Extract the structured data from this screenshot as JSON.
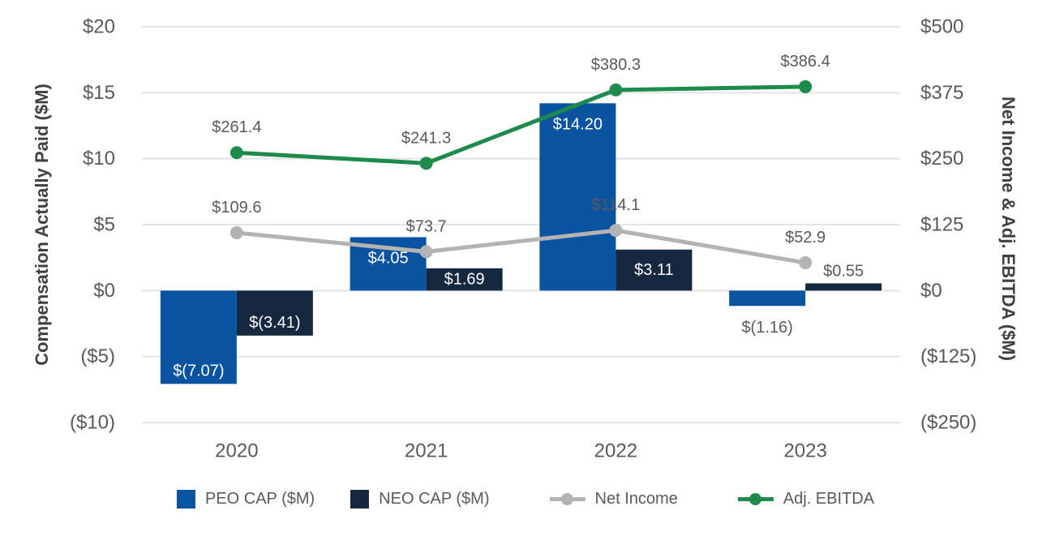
{
  "chart_data": {
    "type": "combo-bar-line",
    "categories": [
      "2020",
      "2021",
      "2022",
      "2023"
    ],
    "bar_series": [
      {
        "name": "PEO CAP ($M)",
        "color": "#0A53A1",
        "axis": "left",
        "values": [
          -7.07,
          4.05,
          14.2,
          -1.16
        ],
        "labels": [
          "$(7.07)",
          "$4.05",
          "$14.20",
          "$(1.16)"
        ]
      },
      {
        "name": "NEO CAP ($M)",
        "color": "#152840",
        "axis": "left",
        "values": [
          -3.41,
          1.69,
          3.11,
          0.55
        ],
        "labels": [
          "$(3.41)",
          "$1.69",
          "$3.11",
          "$0.55"
        ]
      }
    ],
    "line_series": [
      {
        "name": "Net Income",
        "color": "#B3B3B3",
        "axis": "right",
        "values": [
          109.6,
          73.7,
          114.1,
          52.9
        ],
        "labels": [
          "$109.6",
          "$73.7",
          "$114.1",
          "$52.9"
        ]
      },
      {
        "name": "Adj. EBITDA",
        "color": "#1E8A4C",
        "axis": "right",
        "values": [
          261.4,
          241.3,
          380.3,
          386.4
        ],
        "labels": [
          "$261.4",
          "$241.3",
          "$380.3",
          "$386.4"
        ]
      }
    ],
    "left_axis": {
      "title": "Compensation Actually Paid ($M)",
      "min": -10,
      "max": 20,
      "tick_step": 5,
      "tick_labels": [
        "$20",
        "$15",
        "$10",
        "$5",
        "$0",
        "($5)",
        "($10)"
      ]
    },
    "right_axis": {
      "title": "Net Income & Adj. EBITDA ($M)",
      "min": -250,
      "max": 500,
      "tick_step": 125,
      "tick_labels": [
        "$500",
        "$375",
        "$250",
        "$125",
        "$0",
        "($125)",
        "($250)"
      ]
    },
    "grid": true,
    "legend_position": "bottom"
  },
  "colors": {
    "grid": "#E4E4E4",
    "tick_text": "#595959",
    "axis_title_text": "#404040",
    "data_label_outside": "#595959",
    "data_label_inside": "#FFFFFF",
    "background": "#FFFFFF"
  }
}
